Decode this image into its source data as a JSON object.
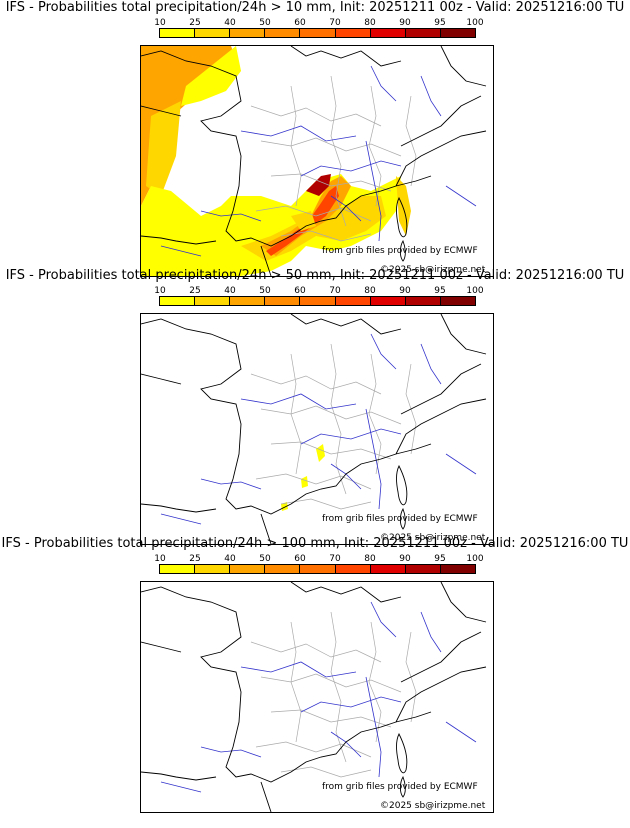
{
  "panels": [
    {
      "title": "IFS - Probabilities total precipitation/24h > 10 mm, Init: 20251211 00z - Valid: 20251216:00 TU"
    },
    {
      "title": "IFS - Probabilities total precipitation/24h > 50 mm, Init: 20251211 00z - Valid: 20251216:00 TU"
    },
    {
      "title": "IFS - Probabilities total precipitation/24h > 100 mm, Init: 20251211 00z - Valid: 20251216:00 TU"
    }
  ],
  "legend": {
    "ticks": [
      "10",
      "25",
      "40",
      "50",
      "60",
      "70",
      "80",
      "90",
      "95",
      "100"
    ],
    "colors": [
      "#ffff00",
      "#ffd700",
      "#ffa500",
      "#ff8c00",
      "#ff7000",
      "#ff4500",
      "#e00000",
      "#b00000",
      "#800000",
      "#500000"
    ]
  },
  "credits": {
    "source": "from grib files provided by ECMWF",
    "copyright": "©2025 sb@irizpme.net"
  },
  "styles": {
    "country_border": "#000000",
    "rivers": "#3333cc",
    "regions": "#aaaaaa"
  }
}
